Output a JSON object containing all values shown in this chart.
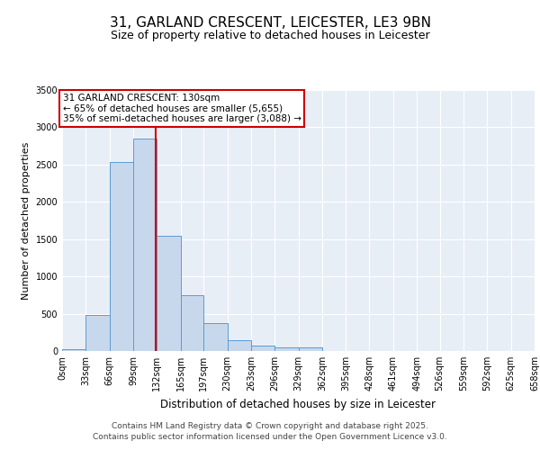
{
  "title_line1": "31, GARLAND CRESCENT, LEICESTER, LE3 9BN",
  "title_line2": "Size of property relative to detached houses in Leicester",
  "xlabel": "Distribution of detached houses by size in Leicester",
  "ylabel": "Number of detached properties",
  "bar_edges": [
    0,
    33,
    66,
    99,
    132,
    165,
    197,
    230,
    263,
    296,
    329,
    362,
    395,
    428,
    461,
    494,
    526,
    559,
    592,
    625,
    658
  ],
  "bar_heights": [
    20,
    480,
    2530,
    2850,
    1540,
    750,
    380,
    140,
    70,
    50,
    50,
    0,
    0,
    0,
    0,
    0,
    0,
    0,
    0,
    0
  ],
  "bar_color": "#c8d8ec",
  "bar_edgecolor": "#5b9bd5",
  "vline_x": 130,
  "vline_color": "#cc0000",
  "annotation_text": "31 GARLAND CRESCENT: 130sqm\n← 65% of detached houses are smaller (5,655)\n35% of semi-detached houses are larger (3,088) →",
  "annotation_box_color": "#ffffff",
  "annotation_box_edgecolor": "#cc0000",
  "ylim": [
    0,
    3500
  ],
  "yticks": [
    0,
    500,
    1000,
    1500,
    2000,
    2500,
    3000,
    3500
  ],
  "bg_color": "#e8eef6",
  "footer_line1": "Contains HM Land Registry data © Crown copyright and database right 2025.",
  "footer_line2": "Contains public sector information licensed under the Open Government Licence v3.0.",
  "tick_labels": [
    "0sqm",
    "33sqm",
    "66sqm",
    "99sqm",
    "132sqm",
    "165sqm",
    "197sqm",
    "230sqm",
    "263sqm",
    "296sqm",
    "329sqm",
    "362sqm",
    "395sqm",
    "428sqm",
    "461sqm",
    "494sqm",
    "526sqm",
    "559sqm",
    "592sqm",
    "625sqm",
    "658sqm"
  ],
  "title_fontsize": 11,
  "subtitle_fontsize": 9,
  "ylabel_fontsize": 8,
  "xlabel_fontsize": 8.5,
  "tick_fontsize": 7,
  "annotation_fontsize": 7.5,
  "footer_fontsize": 6.5
}
